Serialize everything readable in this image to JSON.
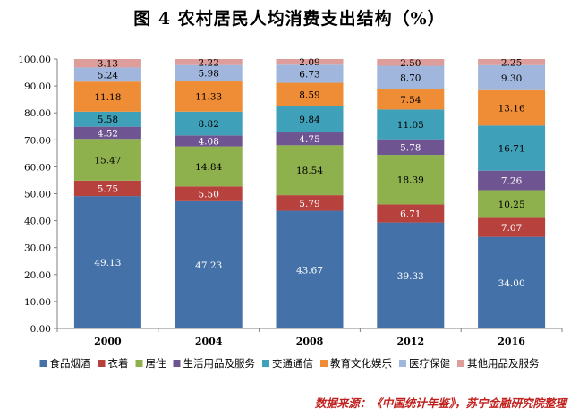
{
  "title": "图 4  农村居民人均消费支出结构（%）",
  "source": "数据来源：《中国统计年鉴》，苏宁金融研究院整理",
  "chart_data": {
    "type": "bar",
    "stacked": true,
    "categories": [
      "2000",
      "2004",
      "2008",
      "2012",
      "2016"
    ],
    "ylim": [
      0,
      100
    ],
    "yticks": [
      "0.00",
      "10.00",
      "20.00",
      "30.00",
      "40.00",
      "50.00",
      "60.00",
      "70.00",
      "80.00",
      "90.00",
      "100.00"
    ],
    "legend_position": "bottom",
    "series": [
      {
        "name": "食品烟酒",
        "color": "#4472a8",
        "values": [
          49.13,
          47.23,
          43.67,
          39.33,
          34.0
        ],
        "labels": [
          "49.13",
          "47.23",
          "43.67",
          "39.33",
          "34.00"
        ]
      },
      {
        "name": "衣着",
        "color": "#b7413d",
        "values": [
          5.75,
          5.5,
          5.79,
          6.71,
          7.07
        ],
        "labels": [
          "5.75",
          "5.50",
          "5.79",
          "6.71",
          "7.07"
        ]
      },
      {
        "name": "居住",
        "color": "#8eb14d",
        "values": [
          15.47,
          14.84,
          18.54,
          18.39,
          10.25
        ],
        "labels": [
          "15.47",
          "14.84",
          "18.54",
          "18.39",
          "10.25"
        ]
      },
      {
        "name": "生活用品及服务",
        "color": "#6e5591",
        "values": [
          4.52,
          4.08,
          4.75,
          5.78,
          7.26
        ],
        "labels": [
          "4.52",
          "4.08",
          "4.75",
          "5.78",
          "7.26"
        ]
      },
      {
        "name": "交通通信",
        "color": "#3fa1b9",
        "values": [
          5.58,
          8.82,
          9.84,
          11.05,
          16.71
        ],
        "labels": [
          "5.58",
          "8.82",
          "9.84",
          "11.05",
          "16.71"
        ]
      },
      {
        "name": "教育文化娱乐",
        "color": "#ef8c36",
        "values": [
          11.18,
          11.33,
          8.59,
          7.54,
          13.16
        ],
        "labels": [
          "11.18",
          "11.33",
          "8.59",
          "7.54",
          "13.16"
        ]
      },
      {
        "name": "医疗保健",
        "color": "#a1b6dc",
        "values": [
          5.24,
          5.98,
          6.73,
          8.7,
          9.3
        ],
        "labels": [
          "5.24",
          "5.98",
          "6.73",
          "8.70",
          "9.30"
        ]
      },
      {
        "name": "其他用品及服务",
        "color": "#dd9e9b",
        "values": [
          3.13,
          2.22,
          2.09,
          2.5,
          2.25
        ],
        "labels": [
          "3.13",
          "2.22",
          "2.09",
          "2.50",
          "2.25"
        ]
      }
    ]
  }
}
